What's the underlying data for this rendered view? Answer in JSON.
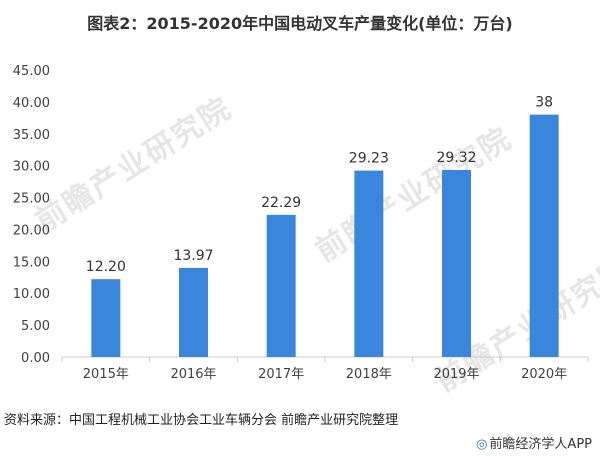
{
  "title": "图表2：2015-2020年中国电动叉车产量变化(单位：万台)",
  "source": "资料来源：中国工程机械工业协会工业车辆分会 前瞻产业研究院整理",
  "brand": {
    "name": "前瞻经济学人APP",
    "logo": "◎",
    "logo_icon": "qianzhan-logo-icon"
  },
  "watermark_text": "前瞻产业研究院",
  "colors": {
    "bar": "#3a86dc",
    "axis": "#cccccc",
    "text": "#404040"
  },
  "chart_data": {
    "type": "bar",
    "title": "图表2：2015-2020年中国电动叉车产量变化(单位：万台)",
    "categories": [
      "2015年",
      "2016年",
      "2017年",
      "2018年",
      "2019年",
      "2020年"
    ],
    "values": [
      12.2,
      13.97,
      22.29,
      29.23,
      29.32,
      38
    ],
    "value_labels": [
      "12.20",
      "13.97",
      "22.29",
      "29.23",
      "29.32",
      "38"
    ],
    "yticks": [
      "0.00",
      "5.00",
      "10.00",
      "15.00",
      "20.00",
      "25.00",
      "30.00",
      "35.00",
      "40.00",
      "45.00"
    ],
    "ylim": [
      0,
      45
    ],
    "xlabel": "",
    "ylabel": "",
    "grid": false,
    "legend": "none"
  }
}
